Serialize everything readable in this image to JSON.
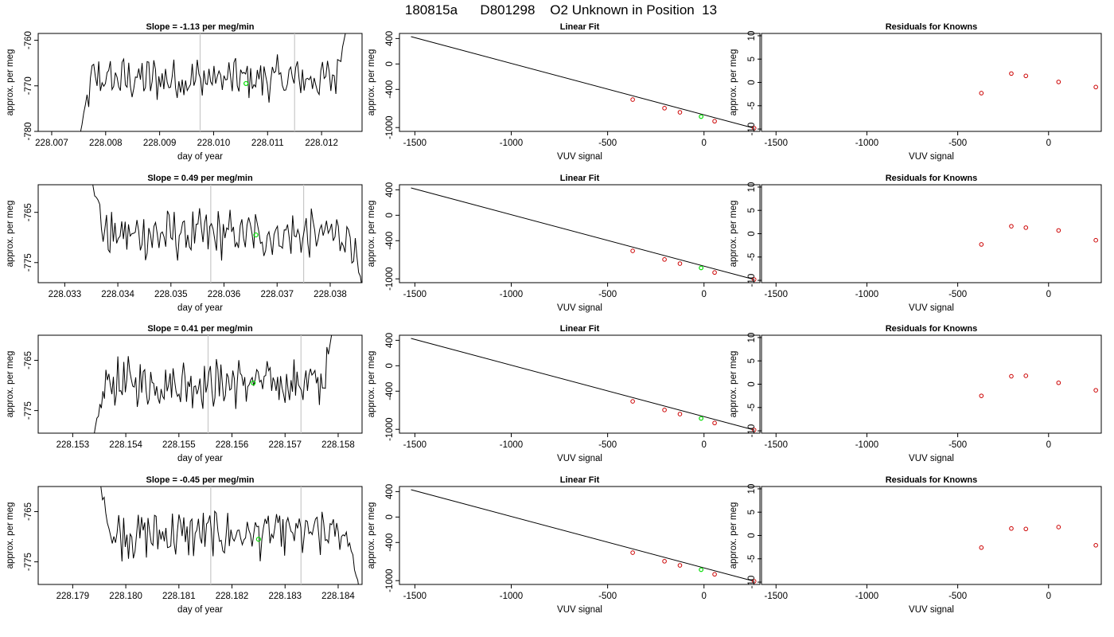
{
  "title": "180815a      D801298    O2 Unknown in Position  13",
  "colors": {
    "trace": "#000000",
    "vline": "#c8c8c8",
    "known": "#cc0000",
    "unknown": "#00dd00",
    "fitline": "#000000"
  },
  "chart_data": [
    {
      "type": "line",
      "title": "Slope =  -1.13  per meg/min",
      "xlabel": "day of year",
      "ylabel": "approx. per meg",
      "xlim": [
        228.00675,
        228.01275
      ],
      "ylim": [
        -780,
        -758.5
      ],
      "xticks": [
        228.007,
        228.008,
        228.009,
        228.01,
        228.011,
        228.012
      ],
      "xtick_labels": [
        "228.007",
        "228.008",
        "228.009",
        "228.010",
        "228.011",
        "228.012"
      ],
      "yticks": [
        -760,
        -770,
        -780
      ],
      "ytick_labels": [
        "-760",
        "-770",
        "-780"
      ],
      "trace_start": 228.0075,
      "trace_end": 228.01245,
      "trace_mean": -768.5,
      "trace_start_value": -782,
      "trace_end_value": -758,
      "vlines": [
        228.00975,
        228.0115
      ],
      "marker": {
        "x": 228.0106,
        "y": -769.5
      }
    },
    {
      "type": "line",
      "title": "Slope =  0.49  per meg/min",
      "xlabel": "day of year",
      "ylabel": "approx. per meg",
      "xlim": [
        228.0325,
        228.0386
      ],
      "ylim": [
        -779,
        -759.5
      ],
      "xticks": [
        228.033,
        228.034,
        228.035,
        228.036,
        228.037,
        228.038
      ],
      "xtick_labels": [
        "228.033",
        "228.034",
        "228.035",
        "228.036",
        "228.037",
        "228.038"
      ],
      "yticks": [
        -765,
        -775
      ],
      "ytick_labels": [
        "-765",
        "-775"
      ],
      "trace_start": 228.0335,
      "trace_end": 228.0386,
      "trace_mean": -769.5,
      "trace_start_value": -758,
      "trace_end_value": -780,
      "vlines": [
        228.03575,
        228.0375
      ],
      "marker": {
        "x": 228.0366,
        "y": -769.5
      }
    },
    {
      "type": "line",
      "title": "Slope =  0.41  per meg/min",
      "xlabel": "day of year",
      "ylabel": "approx. per meg",
      "xlim": [
        228.15235,
        228.15845
      ],
      "ylim": [
        -779.5,
        -760
      ],
      "xticks": [
        228.153,
        228.154,
        228.155,
        228.156,
        228.157,
        228.158
      ],
      "xtick_labels": [
        "228.153",
        "228.154",
        "228.155",
        "228.156",
        "228.157",
        "228.158"
      ],
      "yticks": [
        -765,
        -775
      ],
      "ytick_labels": [
        "-765",
        "-775"
      ],
      "trace_start": 228.1534,
      "trace_end": 228.1579,
      "trace_mean": -769.5,
      "trace_start_value": -780,
      "trace_end_value": -759,
      "vlines": [
        228.15555,
        228.1573
      ],
      "marker": {
        "x": 228.1564,
        "y": -769.5
      }
    },
    {
      "type": "line",
      "title": "Slope =  -0.45  per meg/min",
      "xlabel": "day of year",
      "ylabel": "approx. per meg",
      "xlim": [
        228.17835,
        228.18445
      ],
      "ylim": [
        -779.5,
        -760
      ],
      "xticks": [
        228.179,
        228.18,
        228.181,
        228.182,
        228.183,
        228.184
      ],
      "xtick_labels": [
        "228.179",
        "228.180",
        "228.181",
        "228.182",
        "228.183",
        "228.184"
      ],
      "yticks": [
        -765,
        -775
      ],
      "ytick_labels": [
        "-765",
        "-775"
      ],
      "trace_start": 228.1795,
      "trace_end": 228.1844,
      "trace_mean": -769.5,
      "trace_start_value": -759,
      "trace_end_value": -781,
      "vlines": [
        228.1816,
        228.1833
      ],
      "marker": {
        "x": 228.1825,
        "y": -770.5
      }
    },
    {
      "type": "scatter",
      "title": "Linear Fit",
      "xlabel": "VUV signal",
      "ylabel": "approx. per meg",
      "xlim": [
        -1580,
        290
      ],
      "ylim": [
        -1060,
        480
      ],
      "xticks": [
        -1500,
        -1000,
        -500,
        0
      ],
      "xtick_labels": [
        "-1500",
        "-1000",
        "-500",
        "0"
      ],
      "yticks": [
        400,
        0,
        -400,
        -1000
      ],
      "ytick_labels": [
        "400",
        "0",
        "-400",
        "-1000"
      ],
      "fit_line": {
        "x": [
          -1520,
          260
        ],
        "y": [
          430,
          -1010
        ]
      },
      "knowns": {
        "x": [
          -370,
          -205,
          -125,
          55,
          260
        ],
        "y": [
          -560,
          -695,
          -760,
          -900,
          -1010
        ]
      },
      "unknown": {
        "x": [
          -15
        ],
        "y": [
          -828
        ]
      }
    },
    {
      "type": "scatter",
      "title": "Linear Fit",
      "xlabel": "VUV signal",
      "ylabel": "approx. per meg",
      "xlim": [
        -1580,
        290
      ],
      "ylim": [
        -1060,
        480
      ],
      "xticks": [
        -1500,
        -1000,
        -500,
        0
      ],
      "xtick_labels": [
        "-1500",
        "-1000",
        "-500",
        "0"
      ],
      "yticks": [
        400,
        0,
        -400,
        -1000
      ],
      "ytick_labels": [
        "400",
        "0",
        "-400",
        "-1000"
      ],
      "fit_line": {
        "x": [
          -1520,
          260
        ],
        "y": [
          430,
          -1010
        ]
      },
      "knowns": {
        "x": [
          -370,
          -205,
          -125,
          55,
          260
        ],
        "y": [
          -560,
          -695,
          -760,
          -900,
          -1010
        ]
      },
      "unknown": {
        "x": [
          -15
        ],
        "y": [
          -828
        ]
      }
    },
    {
      "type": "scatter",
      "title": "Linear Fit",
      "xlabel": "VUV signal",
      "ylabel": "approx. per meg",
      "xlim": [
        -1580,
        290
      ],
      "ylim": [
        -1060,
        480
      ],
      "xticks": [
        -1500,
        -1000,
        -500,
        0
      ],
      "xtick_labels": [
        "-1500",
        "-1000",
        "-500",
        "0"
      ],
      "yticks": [
        400,
        0,
        -400,
        -1000
      ],
      "ytick_labels": [
        "400",
        "0",
        "-400",
        "-1000"
      ],
      "fit_line": {
        "x": [
          -1520,
          260
        ],
        "y": [
          430,
          -1010
        ]
      },
      "knowns": {
        "x": [
          -370,
          -205,
          -125,
          55,
          260
        ],
        "y": [
          -560,
          -695,
          -760,
          -900,
          -1010
        ]
      },
      "unknown": {
        "x": [
          -15
        ],
        "y": [
          -828
        ]
      }
    },
    {
      "type": "scatter",
      "title": "Linear Fit",
      "xlabel": "VUV signal",
      "ylabel": "approx. per meg",
      "xlim": [
        -1580,
        290
      ],
      "ylim": [
        -1060,
        480
      ],
      "xticks": [
        -1500,
        -1000,
        -500,
        0
      ],
      "xtick_labels": [
        "-1500",
        "-1000",
        "-500",
        "0"
      ],
      "yticks": [
        400,
        0,
        -400,
        -1000
      ],
      "ytick_labels": [
        "400",
        "0",
        "-400",
        "-1000"
      ],
      "fit_line": {
        "x": [
          -1520,
          260
        ],
        "y": [
          430,
          -1010
        ]
      },
      "knowns": {
        "x": [
          -370,
          -205,
          -125,
          55,
          260
        ],
        "y": [
          -560,
          -695,
          -760,
          -900,
          -1010
        ]
      },
      "unknown": {
        "x": [
          -15
        ],
        "y": [
          -828
        ]
      }
    },
    {
      "type": "scatter",
      "title": "Residuals for Knowns",
      "xlabel": "VUV signal",
      "ylabel": "approx. per meg",
      "xlim": [
        -1580,
        290
      ],
      "ylim": [
        -10.5,
        10.5
      ],
      "xticks": [
        -1500,
        -1000,
        -500,
        0
      ],
      "xtick_labels": [
        "-1500",
        "-1000",
        "-500",
        "0"
      ],
      "yticks": [
        10,
        5,
        0,
        -5,
        -10
      ],
      "ytick_labels": [
        "10",
        "5",
        "0",
        "-5",
        "-10"
      ],
      "knowns": {
        "x": [
          -370,
          -205,
          -125,
          55,
          260
        ],
        "y": [
          -2.3,
          1.9,
          1.4,
          0.1,
          -1.0
        ]
      }
    },
    {
      "type": "scatter",
      "title": "Residuals for Knowns",
      "xlabel": "VUV signal",
      "ylabel": "approx. per meg",
      "xlim": [
        -1580,
        290
      ],
      "ylim": [
        -10.5,
        10.5
      ],
      "xticks": [
        -1500,
        -1000,
        -500,
        0
      ],
      "xtick_labels": [
        "-1500",
        "-1000",
        "-500",
        "0"
      ],
      "yticks": [
        10,
        5,
        0,
        -5,
        -10
      ],
      "ytick_labels": [
        "10",
        "5",
        "0",
        "-5",
        "-10"
      ],
      "knowns": {
        "x": [
          -370,
          -205,
          -125,
          55,
          260
        ],
        "y": [
          -2.3,
          1.6,
          1.3,
          0.7,
          -1.4
        ]
      }
    },
    {
      "type": "scatter",
      "title": "Residuals for Knowns",
      "xlabel": "VUV signal",
      "ylabel": "approx. per meg",
      "xlim": [
        -1580,
        290
      ],
      "ylim": [
        -10.5,
        10.5
      ],
      "xticks": [
        -1500,
        -1000,
        -500,
        0
      ],
      "xtick_labels": [
        "-1500",
        "-1000",
        "-500",
        "0"
      ],
      "yticks": [
        10,
        5,
        0,
        -5,
        -10
      ],
      "ytick_labels": [
        "10",
        "5",
        "0",
        "-5",
        "-10"
      ],
      "knowns": {
        "x": [
          -370,
          -205,
          -125,
          55,
          260
        ],
        "y": [
          -2.5,
          1.7,
          1.8,
          0.3,
          -1.3
        ]
      }
    },
    {
      "type": "scatter",
      "title": "Residuals for Knowns",
      "xlabel": "VUV signal",
      "ylabel": "approx. per meg",
      "xlim": [
        -1580,
        290
      ],
      "ylim": [
        -10.5,
        10.5
      ],
      "xticks": [
        -1500,
        -1000,
        -500,
        0
      ],
      "xtick_labels": [
        "-1500",
        "-1000",
        "-500",
        "0"
      ],
      "yticks": [
        10,
        5,
        0,
        -5,
        -10
      ],
      "ytick_labels": [
        "10",
        "5",
        "0",
        "-5",
        "-10"
      ],
      "knowns": {
        "x": [
          -370,
          -205,
          -125,
          55,
          260
        ],
        "y": [
          -2.6,
          1.5,
          1.4,
          1.8,
          -2.1
        ]
      }
    }
  ]
}
